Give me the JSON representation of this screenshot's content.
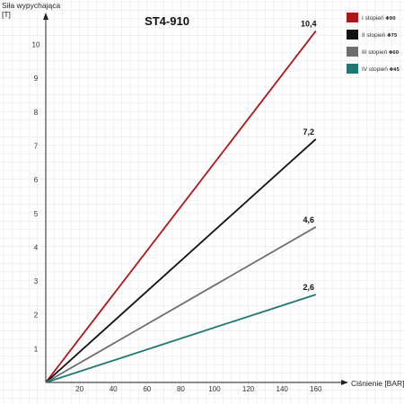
{
  "chart_data": {
    "type": "line",
    "title": "ST4-910",
    "ylabel_line1": "Siła wypychająca",
    "ylabel_line2": "[T]",
    "xlabel": "Ciśnienie [BAR]",
    "x_ticks": [
      "20",
      "40",
      "60",
      "80",
      "100",
      "120",
      "140",
      "160"
    ],
    "y_ticks": [
      "1",
      "2",
      "3",
      "4",
      "5",
      "6",
      "7",
      "8",
      "9",
      "10"
    ],
    "xlim": [
      0,
      180
    ],
    "ylim": [
      0,
      11
    ],
    "grid": true,
    "legend_position": "top-right",
    "series": [
      {
        "name": "I stopień",
        "sub": "Φ90",
        "color": "#b01418",
        "x": [
          0,
          160
        ],
        "y": [
          0,
          10.4
        ],
        "end_label": "10,4"
      },
      {
        "name": "II stopień",
        "sub": "Φ75",
        "color": "#111111",
        "x": [
          0,
          160
        ],
        "y": [
          0,
          7.2
        ],
        "end_label": "7,2"
      },
      {
        "name": "III stopień",
        "sub": "Φ60",
        "color": "#6e6e6e",
        "x": [
          0,
          160
        ],
        "y": [
          0,
          4.6
        ],
        "end_label": "4,6"
      },
      {
        "name": "IV stopień",
        "sub": "Φ45",
        "color": "#1e7774",
        "x": [
          0,
          160
        ],
        "y": [
          0,
          2.6
        ],
        "end_label": "2,6"
      }
    ]
  }
}
